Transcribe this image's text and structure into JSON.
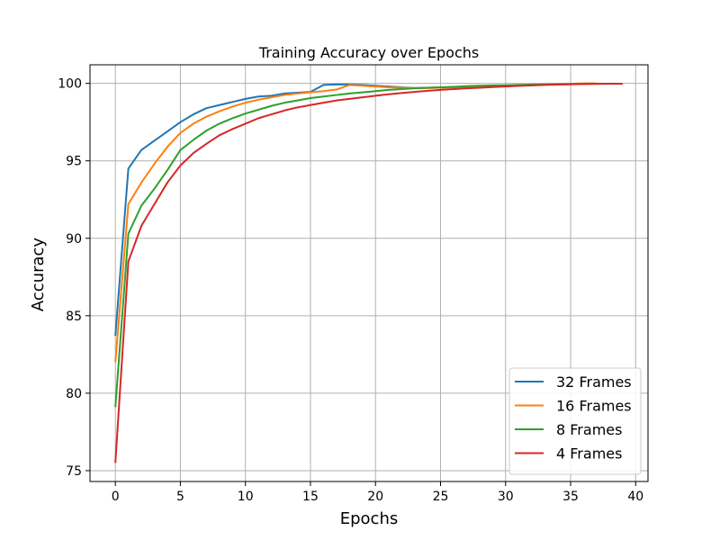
{
  "chart_data": {
    "type": "line",
    "title": "Training Accuracy over Epochs",
    "xlabel": "Epochs",
    "ylabel": "Accuracy",
    "xlim": [
      -1.95,
      40.95
    ],
    "ylim": [
      74.3,
      101.2
    ],
    "xticks": [
      0,
      5,
      10,
      15,
      20,
      25,
      30,
      35,
      40
    ],
    "yticks": [
      75,
      80,
      85,
      90,
      95,
      100
    ],
    "grid": true,
    "legend_position": "lower-right",
    "series": [
      {
        "name": "32 Frames",
        "color": "#1f77b4",
        "x": [
          0,
          1,
          2,
          3,
          4,
          5,
          6,
          7,
          8,
          9,
          10,
          11,
          12,
          13,
          14,
          15,
          16,
          17,
          18,
          19,
          20,
          21,
          22,
          23,
          24,
          25,
          26,
          27,
          28,
          29,
          30,
          31,
          32,
          33
        ],
        "y": [
          83.7,
          94.5,
          95.7,
          96.3,
          96.9,
          97.5,
          98.0,
          98.4,
          98.6,
          98.8,
          99.0,
          99.15,
          99.2,
          99.35,
          99.4,
          99.45,
          99.9,
          99.93,
          99.93,
          99.9,
          99.85,
          99.8,
          99.75,
          99.7,
          99.72,
          99.74,
          99.76,
          99.78,
          99.8,
          99.82,
          99.85,
          99.88,
          99.9,
          99.92
        ]
      },
      {
        "name": "16 Frames",
        "color": "#ff7f0e",
        "x": [
          0,
          1,
          2,
          3,
          4,
          5,
          6,
          7,
          8,
          9,
          10,
          11,
          12,
          13,
          14,
          15,
          16,
          17,
          18,
          19,
          20,
          21,
          22,
          23,
          24,
          25,
          26,
          27,
          28,
          29,
          30,
          31,
          32,
          33,
          34,
          35,
          36,
          37
        ],
        "y": [
          82.0,
          92.2,
          93.6,
          94.8,
          95.9,
          96.8,
          97.4,
          97.85,
          98.2,
          98.5,
          98.75,
          98.95,
          99.1,
          99.25,
          99.35,
          99.42,
          99.5,
          99.6,
          99.9,
          99.85,
          99.8,
          99.75,
          99.72,
          99.7,
          99.7,
          99.72,
          99.74,
          99.76,
          99.78,
          99.8,
          99.82,
          99.85,
          99.88,
          99.92,
          99.96,
          99.98,
          100.0,
          100.0
        ]
      },
      {
        "name": "8 Frames",
        "color": "#2ca02c",
        "x": [
          0,
          1,
          2,
          3,
          4,
          5,
          6,
          7,
          8,
          9,
          10,
          11,
          12,
          13,
          14,
          15,
          16,
          17,
          18,
          19,
          20,
          21,
          22,
          23,
          24,
          25,
          26,
          27,
          28,
          29,
          30,
          31,
          32,
          33,
          34,
          35,
          36,
          37,
          38,
          39
        ],
        "y": [
          79.1,
          90.3,
          92.1,
          93.2,
          94.4,
          95.7,
          96.35,
          96.95,
          97.4,
          97.75,
          98.05,
          98.3,
          98.55,
          98.75,
          98.9,
          99.05,
          99.15,
          99.25,
          99.35,
          99.42,
          99.5,
          99.58,
          99.63,
          99.68,
          99.72,
          99.75,
          99.78,
          99.82,
          99.85,
          99.87,
          99.88,
          99.9,
          99.92,
          99.94,
          99.95,
          99.96,
          99.97,
          99.97,
          99.98,
          99.98
        ]
      },
      {
        "name": "4 Frames",
        "color": "#d62728",
        "x": [
          0,
          1,
          2,
          3,
          4,
          5,
          6,
          7,
          8,
          9,
          10,
          11,
          12,
          13,
          14,
          15,
          16,
          17,
          18,
          19,
          20,
          21,
          22,
          23,
          24,
          25,
          26,
          27,
          28,
          29,
          30,
          31,
          32,
          33,
          34,
          35,
          36,
          37,
          38,
          39
        ],
        "y": [
          75.5,
          88.5,
          90.8,
          92.2,
          93.6,
          94.7,
          95.5,
          96.1,
          96.65,
          97.05,
          97.4,
          97.75,
          98.0,
          98.25,
          98.45,
          98.6,
          98.75,
          98.9,
          99.0,
          99.1,
          99.2,
          99.3,
          99.38,
          99.45,
          99.52,
          99.58,
          99.63,
          99.68,
          99.72,
          99.76,
          99.8,
          99.84,
          99.87,
          99.9,
          99.92,
          99.94,
          99.96,
          99.97,
          99.98,
          99.98
        ]
      }
    ]
  }
}
